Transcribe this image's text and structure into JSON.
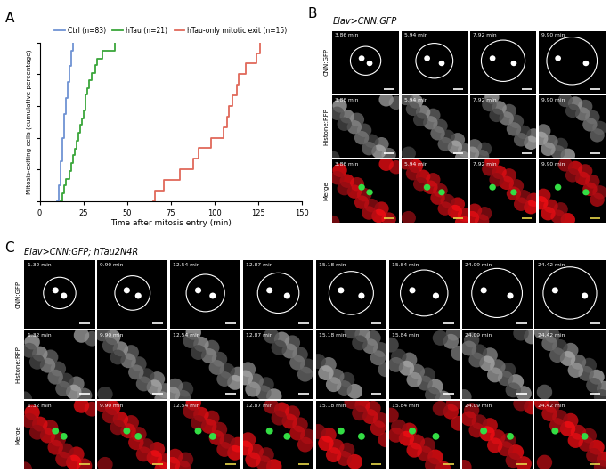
{
  "chart_data": {
    "type": "step",
    "annotations": [
      "A"
    ],
    "xlabel": "Time after mitosis entry (min)",
    "ylabel": "Mitosis-exiting cells (cumulative percentage)",
    "xlim": [
      0,
      150
    ],
    "xticks": [
      0,
      25,
      50,
      75,
      100,
      125,
      150
    ],
    "ylim": [
      0,
      100
    ],
    "yticks": [
      0,
      20,
      40,
      60,
      80,
      100
    ],
    "tick_labels": "x",
    "legend": "lower center",
    "series": [
      {
        "name": "Ctrl (n=83)",
        "color": "#6f93d3",
        "x": [
          10,
          11,
          12,
          13,
          14,
          15,
          16,
          17,
          18,
          19
        ],
        "values": [
          0,
          10,
          25,
          40,
          55,
          65,
          75,
          85,
          95,
          100
        ]
      },
      {
        "name": "hTau (n=21)",
        "color": "#3aa63a",
        "x": [
          12,
          13,
          14,
          15,
          17,
          18,
          19,
          20,
          21,
          22,
          23,
          24,
          25,
          26,
          27,
          28,
          30,
          32,
          33,
          36,
          43
        ],
        "values": [
          0,
          5,
          10,
          14,
          19,
          24,
          29,
          33,
          38,
          43,
          48,
          52,
          57,
          67,
          71,
          76,
          81,
          86,
          90,
          95,
          100
        ]
      },
      {
        "name": "hTau-only mitotic exit (n=15)",
        "color": "#e0695a",
        "x": [
          65,
          66,
          71,
          80,
          88,
          91,
          98,
          105,
          107,
          108,
          110,
          113,
          114,
          118,
          124,
          126
        ],
        "values": [
          0,
          6.7,
          13.3,
          20,
          26.7,
          33.3,
          40,
          46.7,
          53.3,
          60,
          66.7,
          73.3,
          80,
          86.7,
          93.3,
          100
        ]
      }
    ]
  },
  "image_panels": [
    {
      "label": "B",
      "title": "Elav>CNN:GFP",
      "rows": [
        "CNN:GFP",
        "Histone:RFP",
        "Merge"
      ],
      "timestamps": [
        "3.86 min",
        "5.94 min",
        "7.92 min",
        "9.90 min"
      ]
    },
    {
      "label": "C",
      "title": "Elav>CNN:GFP; hTau2N4R",
      "rows": [
        "CNN:GFP",
        "Histone:RFP",
        "Merge"
      ],
      "timestamps": [
        "1.32 min",
        "9.90 min",
        "12.54 min",
        "12.87 min",
        "15.18 min",
        "15.84 min",
        "24.09 min",
        "24.42 min"
      ]
    }
  ]
}
